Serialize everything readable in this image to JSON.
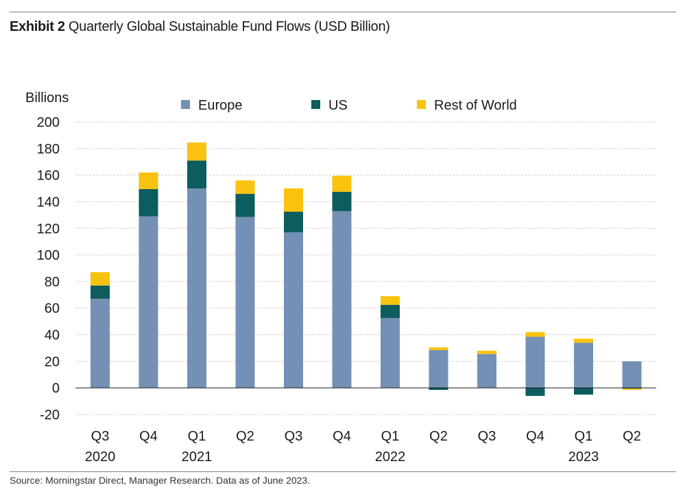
{
  "header": {
    "exhibit_label": "Exhibit 2",
    "title": "Quarterly Global Sustainable Fund Flows (USD Billion)"
  },
  "footer": {
    "source": "Source: Morningstar Direct, Manager Research. Data as of June 2023."
  },
  "chart_data": {
    "type": "bar",
    "stacked": true,
    "title": "Quarterly Global Sustainable Fund Flows (USD Billion)",
    "ylabel": "Billions",
    "xlabel": "",
    "ylim": [
      -20,
      200
    ],
    "yticks": [
      -20,
      0,
      20,
      40,
      60,
      80,
      100,
      120,
      140,
      160,
      180,
      200
    ],
    "grid": true,
    "legend_position": "top",
    "categories": [
      "Q3",
      "Q4",
      "Q1",
      "Q2",
      "Q3",
      "Q4",
      "Q1",
      "Q2",
      "Q3",
      "Q4",
      "Q1",
      "Q2"
    ],
    "year_labels": [
      "2020",
      "",
      "2021",
      "",
      "",
      "",
      "2022",
      "",
      "",
      "",
      "2023",
      ""
    ],
    "series": [
      {
        "name": "Europe",
        "color": "#7490b4",
        "values": [
          67,
          129,
          150,
          128.5,
          117,
          133,
          52.5,
          28.5,
          25.5,
          38.5,
          34,
          20
        ]
      },
      {
        "name": "US",
        "color": "#0d5c5e",
        "values": [
          10,
          20.5,
          21,
          17.5,
          15.5,
          14.5,
          10,
          -1.5,
          0,
          -6,
          -5,
          -0.5
        ]
      },
      {
        "name": "Rest of World",
        "color": "#f9c20e",
        "values": [
          10,
          12.5,
          13.5,
          10,
          17.5,
          12,
          6.5,
          2,
          2.5,
          3.5,
          3,
          -1
        ]
      }
    ]
  }
}
